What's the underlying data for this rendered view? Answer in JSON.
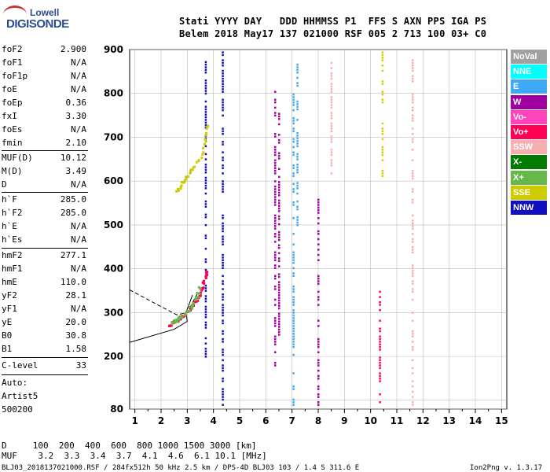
{
  "logo": {
    "line1": "Lowell",
    "line2": "DIGISONDE"
  },
  "header": {
    "labels": "Stati YYYY DAY   DDD HHMMSS P1  FFS S AXN PPS IGA PS",
    "values": "Belem 2018 May17 137 021000 RSF 005 2 713 100 03+ C0"
  },
  "params": [
    {
      "k": "foF2",
      "v": "2.900"
    },
    {
      "k": "foF1",
      "v": "N/A"
    },
    {
      "k": "foF1p",
      "v": "N/A"
    },
    {
      "k": "foE",
      "v": "N/A"
    },
    {
      "k": "foEp",
      "v": "0.36"
    },
    {
      "k": "fxI",
      "v": "3.30"
    },
    {
      "k": "foEs",
      "v": "N/A"
    },
    {
      "k": "fmin",
      "v": "2.10"
    },
    {
      "k": "MUF(D)",
      "v": "10.12"
    },
    {
      "k": "M(D)",
      "v": "3.49"
    },
    {
      "k": "D",
      "v": "N/A"
    },
    {
      "k": "h`F",
      "v": "285.0"
    },
    {
      "k": "h`F2",
      "v": "285.0"
    },
    {
      "k": "h`E",
      "v": "N/A"
    },
    {
      "k": "h`Es",
      "v": "N/A"
    },
    {
      "k": "hmF2",
      "v": "277.1"
    },
    {
      "k": "hmF1",
      "v": "N/A"
    },
    {
      "k": "hmE",
      "v": "110.0"
    },
    {
      "k": "yF2",
      "v": "28.1"
    },
    {
      "k": "yF1",
      "v": "N/A"
    },
    {
      "k": "yE",
      "v": "20.0"
    },
    {
      "k": "B0",
      "v": "30.8"
    },
    {
      "k": "B1",
      "v": "1.58"
    },
    {
      "k": "C-level",
      "v": "33"
    }
  ],
  "auto": {
    "line1": "Auto:",
    "line2": "Artist5",
    "line3": "500200"
  },
  "legend": [
    {
      "label": "NoVal",
      "color": "#a0a0a0"
    },
    {
      "label": "NNE",
      "color": "#00ffff"
    },
    {
      "label": "E",
      "color": "#3fa9f5"
    },
    {
      "label": "W",
      "color": "#a000a0"
    },
    {
      "label": "Vo-",
      "color": "#ff44bb"
    },
    {
      "label": "Vo+",
      "color": "#ff0055"
    },
    {
      "label": "SSW",
      "color": "#f5b0b0"
    },
    {
      "label": "X-",
      "color": "#007a00"
    },
    {
      "label": "X+",
      "color": "#66b84a"
    },
    {
      "label": "SSE",
      "color": "#cccc00"
    },
    {
      "label": "NNW",
      "color": "#1010c0"
    }
  ],
  "footer": {
    "d_row": "D     100  200  400  600  800 1000 1500 3000 [km]",
    "muf_row": "MUF    3.2  3.3  3.4  3.7  4.1  4.6  6.1 10.1 [MHz]",
    "file_info": "BLJ03_2018137021000.RSF / 284fx512h 50 kHz 2.5 km / DPS-4D BLJ03 103 / 1.4 S 311.6 E",
    "version": "Ion2Png v. 1.3.17"
  },
  "chart_data": {
    "type": "scatter",
    "xlim": [
      0.8,
      15.2
    ],
    "ylim": [
      80,
      900
    ],
    "xticks": [
      1,
      2,
      3,
      4,
      5,
      6,
      7,
      8,
      9,
      10,
      11,
      12,
      13,
      14,
      15
    ],
    "yticks": [
      80,
      100,
      200,
      300,
      400,
      500,
      600,
      700,
      800,
      900
    ],
    "ylabels": [
      80,
      200,
      300,
      400,
      500,
      600,
      700,
      800,
      900
    ],
    "grid": true,
    "trace_series": [
      {
        "name": "F2 O-trace",
        "color": "#ff0055",
        "points": [
          [
            2.3,
            272
          ],
          [
            2.5,
            278
          ],
          [
            2.7,
            287
          ],
          [
            2.9,
            297
          ],
          [
            3.1,
            310
          ],
          [
            3.3,
            325
          ],
          [
            3.5,
            345
          ],
          [
            3.6,
            365
          ],
          [
            3.7,
            385
          ],
          [
            3.75,
            395
          ]
        ]
      },
      {
        "name": "F2 X-trace",
        "color": "#66b84a",
        "points": [
          [
            2.4,
            275
          ],
          [
            2.6,
            283
          ],
          [
            2.8,
            292
          ],
          [
            3.0,
            303
          ],
          [
            3.2,
            318
          ],
          [
            3.35,
            335
          ],
          [
            3.5,
            360
          ]
        ]
      },
      {
        "name": "Multi-hop",
        "color": "#cccc00",
        "points": [
          [
            2.6,
            580
          ],
          [
            2.8,
            595
          ],
          [
            3.0,
            612
          ],
          [
            3.2,
            628
          ],
          [
            3.5,
            655
          ],
          [
            3.7,
            700
          ],
          [
            3.8,
            735
          ]
        ]
      }
    ],
    "vertical_streaks": [
      {
        "x": 4.35,
        "color": "#1010c0",
        "from": 90,
        "to": 900
      },
      {
        "x": 3.7,
        "color": "#1010c0",
        "from": 200,
        "to": 880
      },
      {
        "x": 6.35,
        "color": "#a000a0",
        "from": 180,
        "to": 820
      },
      {
        "x": 6.5,
        "color": "#a000a0",
        "from": 250,
        "to": 760
      },
      {
        "x": 7.2,
        "color": "#3fa9f5",
        "from": 500,
        "to": 880
      },
      {
        "x": 7.05,
        "color": "#3fa9f5",
        "from": 90,
        "to": 800
      },
      {
        "x": 8.0,
        "color": "#a000a0",
        "from": 90,
        "to": 560
      },
      {
        "x": 8.5,
        "color": "#f5b0b0",
        "from": 600,
        "to": 880
      },
      {
        "x": 10.35,
        "color": "#ff0055",
        "from": 90,
        "to": 350
      },
      {
        "x": 10.45,
        "color": "#cccc00",
        "from": 600,
        "to": 900
      },
      {
        "x": 11.6,
        "color": "#f5b0b0",
        "from": 90,
        "to": 880
      }
    ],
    "profile_curves": [
      {
        "name": "profile",
        "style": "solid",
        "points": [
          [
            0.8,
            232
          ],
          [
            2.5,
            262
          ],
          [
            3.0,
            280
          ],
          [
            2.95,
            300
          ],
          [
            3.2,
            340
          ]
        ]
      },
      {
        "name": "profile-dashed",
        "style": "dashed",
        "points": [
          [
            0.8,
            352
          ],
          [
            1.8,
            320
          ],
          [
            2.6,
            295
          ],
          [
            3.0,
            300
          ],
          [
            3.4,
            345
          ]
        ]
      }
    ]
  }
}
